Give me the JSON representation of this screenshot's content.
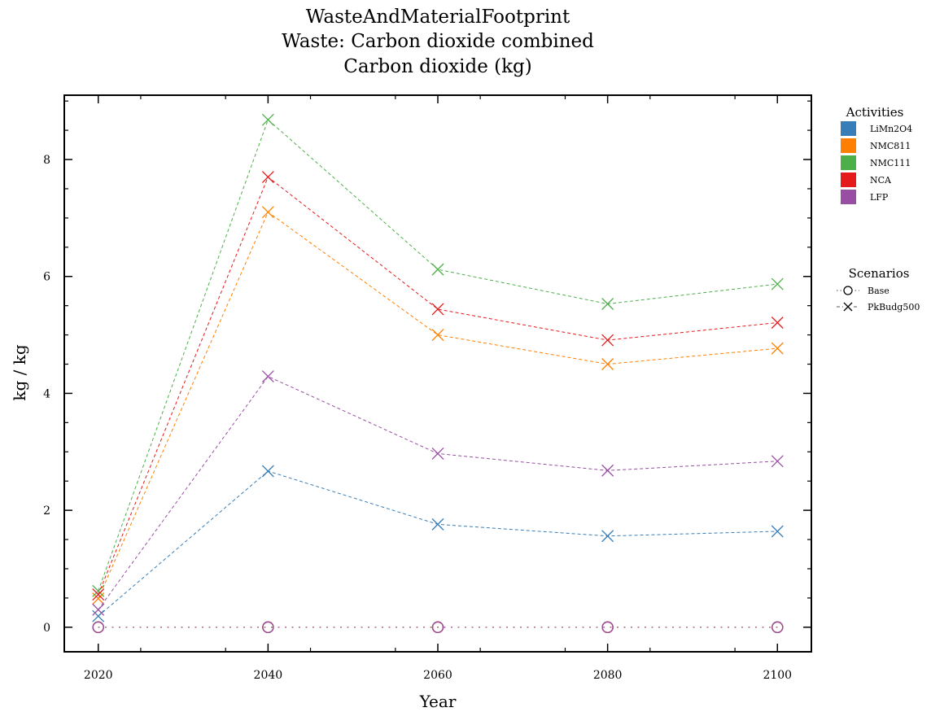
{
  "chart_data": {
    "type": "line",
    "title_lines": [
      "WasteAndMaterialFootprint",
      "Waste: Carbon dioxide combined",
      "Carbon dioxide (kg)"
    ],
    "xlabel": "Year",
    "ylabel": "kg / kg",
    "x": [
      2020,
      2040,
      2060,
      2080,
      2100
    ],
    "xlim": [
      2016,
      2104
    ],
    "ylim": [
      -0.42,
      9.1
    ],
    "xticks": [
      2020,
      2040,
      2060,
      2080,
      2100
    ],
    "yticks": [
      0,
      2,
      4,
      6,
      8
    ],
    "grid": false,
    "legend_position": "right",
    "activities_title": "Activities",
    "scenarios_title": "Scenarios",
    "activities": [
      {
        "name": "LiMn2O4",
        "color": "#377eb8"
      },
      {
        "name": "NMC811",
        "color": "#ff7f00"
      },
      {
        "name": "NMC111",
        "color": "#4daf4a"
      },
      {
        "name": "NCA",
        "color": "#e41a1c"
      },
      {
        "name": "LFP",
        "color": "#984ea3"
      }
    ],
    "scenarios": [
      {
        "name": "Base",
        "marker": "circle",
        "line": "dotted"
      },
      {
        "name": "PkBudg500",
        "marker": "x",
        "line": "dashed"
      }
    ],
    "series": [
      {
        "activity": "LiMn2O4",
        "scenario": "Base",
        "values": [
          0,
          0,
          0,
          0,
          0
        ]
      },
      {
        "activity": "NMC811",
        "scenario": "Base",
        "values": [
          0,
          0,
          0,
          0,
          0
        ]
      },
      {
        "activity": "NMC111",
        "scenario": "Base",
        "values": [
          0,
          0,
          0,
          0,
          0
        ]
      },
      {
        "activity": "NCA",
        "scenario": "Base",
        "values": [
          0,
          0,
          0,
          0,
          0
        ]
      },
      {
        "activity": "LFP",
        "scenario": "Base",
        "values": [
          0,
          0,
          0,
          0,
          0
        ]
      },
      {
        "activity": "LiMn2O4",
        "scenario": "PkBudg500",
        "values": [
          0.19,
          2.67,
          1.76,
          1.56,
          1.64
        ]
      },
      {
        "activity": "NMC811",
        "scenario": "PkBudg500",
        "values": [
          0.49,
          7.1,
          5.0,
          4.5,
          4.77
        ]
      },
      {
        "activity": "NMC111",
        "scenario": "PkBudg500",
        "values": [
          0.62,
          8.68,
          6.12,
          5.53,
          5.87
        ]
      },
      {
        "activity": "NCA",
        "scenario": "PkBudg500",
        "values": [
          0.56,
          7.7,
          5.44,
          4.91,
          5.21
        ]
      },
      {
        "activity": "LFP",
        "scenario": "PkBudg500",
        "values": [
          0.3,
          4.29,
          2.97,
          2.68,
          2.84
        ]
      }
    ]
  }
}
